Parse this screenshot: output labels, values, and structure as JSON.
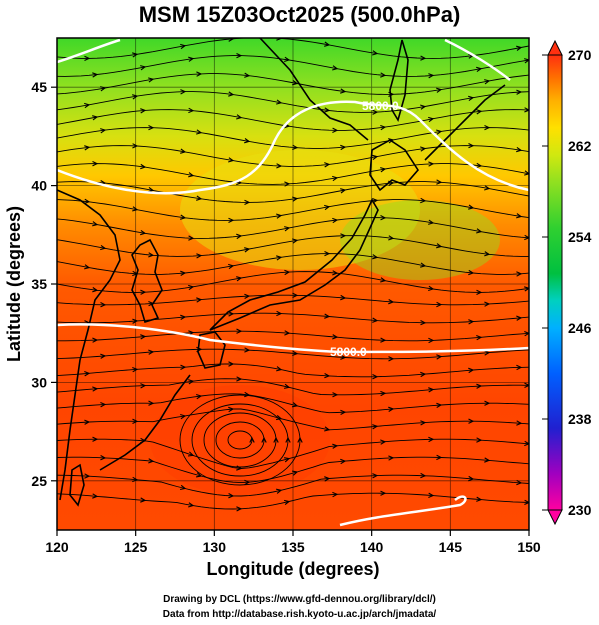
{
  "title": "MSM 15Z03Oct2025 (500.0hPa)",
  "xlabel": "Longitude (degrees)",
  "ylabel": "Latitude  (degrees)",
  "credits": {
    "line1": "Drawing by DCL (https://www.gfd-dennou.org/library/dcl/)",
    "line2": "Data from http://database.rish.kyoto-u.ac.jp/arch/jmadata/"
  },
  "map": {
    "lon_range": [
      120,
      150
    ],
    "lat_range": [
      22.5,
      47.5
    ],
    "lon_ticks": [
      "120",
      "125",
      "130",
      "135",
      "140",
      "145",
      "150"
    ],
    "lat_ticks": [
      "25",
      "30",
      "35",
      "40",
      "45"
    ],
    "contours": [
      {
        "label": "5800.0",
        "lat_range": [
          38,
          44
        ]
      },
      {
        "label": "5800.0",
        "lat": 33.5
      }
    ]
  },
  "colorbar": {
    "min": 230,
    "max": 270,
    "labels": [
      "270",
      "262",
      "254",
      "246",
      "238",
      "230"
    ],
    "colors": [
      "#ff00a0",
      "#a000c0",
      "#2020d0",
      "#0060ff",
      "#00b0ff",
      "#00d0c0",
      "#00c040",
      "#30d030",
      "#90e020",
      "#d0e810",
      "#ffe000",
      "#ffb000",
      "#ff7000",
      "#ff3010"
    ]
  }
}
